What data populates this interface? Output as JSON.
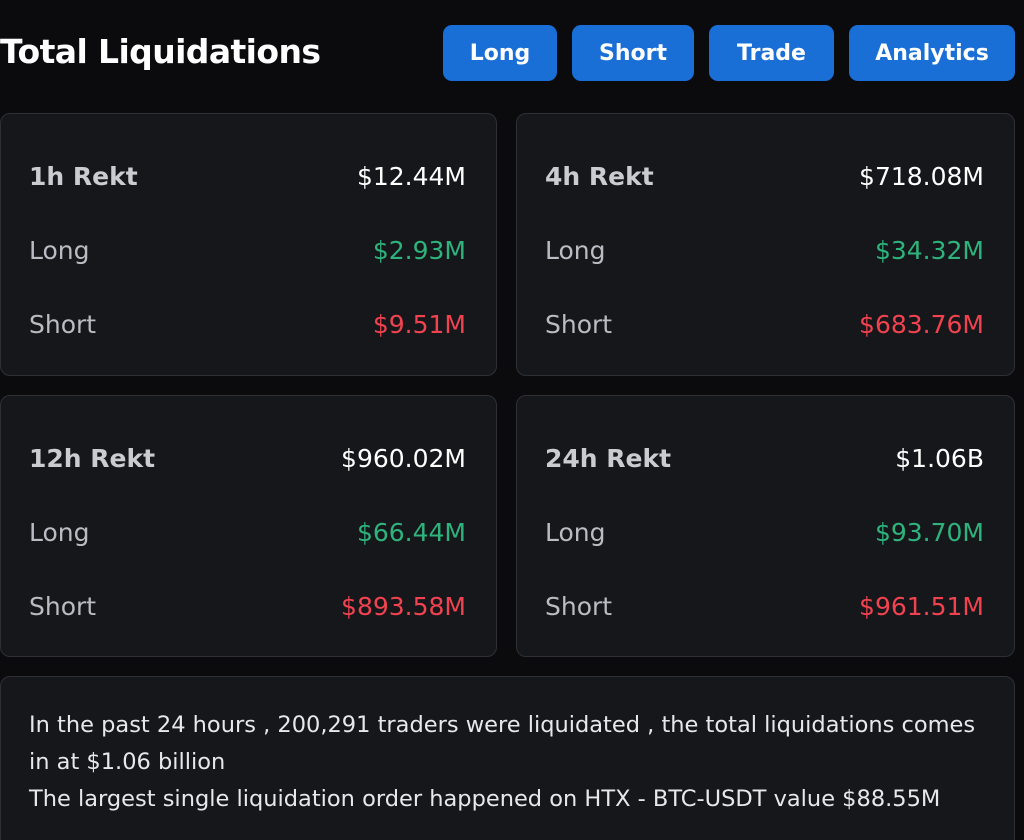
{
  "header": {
    "title": "Total Liquidations",
    "buttons": [
      {
        "label": "Long"
      },
      {
        "label": "Short"
      },
      {
        "label": "Trade"
      },
      {
        "label": "Analytics"
      }
    ]
  },
  "cards": [
    {
      "period_label": "1h Rekt",
      "total": "$12.44M",
      "long_label": "Long",
      "long_value": "$2.93M",
      "short_label": "Short",
      "short_value": "$9.51M"
    },
    {
      "period_label": "4h Rekt",
      "total": "$718.08M",
      "long_label": "Long",
      "long_value": "$34.32M",
      "short_label": "Short",
      "short_value": "$683.76M"
    },
    {
      "period_label": "12h Rekt",
      "total": "$960.02M",
      "long_label": "Long",
      "long_value": "$66.44M",
      "short_label": "Short",
      "short_value": "$893.58M"
    },
    {
      "period_label": "24h Rekt",
      "total": "$1.06B",
      "long_label": "Long",
      "long_value": "$93.70M",
      "short_label": "Short",
      "short_value": "$961.51M"
    }
  ],
  "summary": {
    "line1": "In the past 24 hours , 200,291 traders were liquidated , the total liquidations comes in at $1.06 billion",
    "line2": "The largest single liquidation order happened on HTX - BTC-USDT value $88.55M"
  },
  "colors": {
    "background": "#0b0b0e",
    "card": "#16171b",
    "button": "#1a6fd6",
    "long": "#2fb37c",
    "short": "#f0424f"
  }
}
